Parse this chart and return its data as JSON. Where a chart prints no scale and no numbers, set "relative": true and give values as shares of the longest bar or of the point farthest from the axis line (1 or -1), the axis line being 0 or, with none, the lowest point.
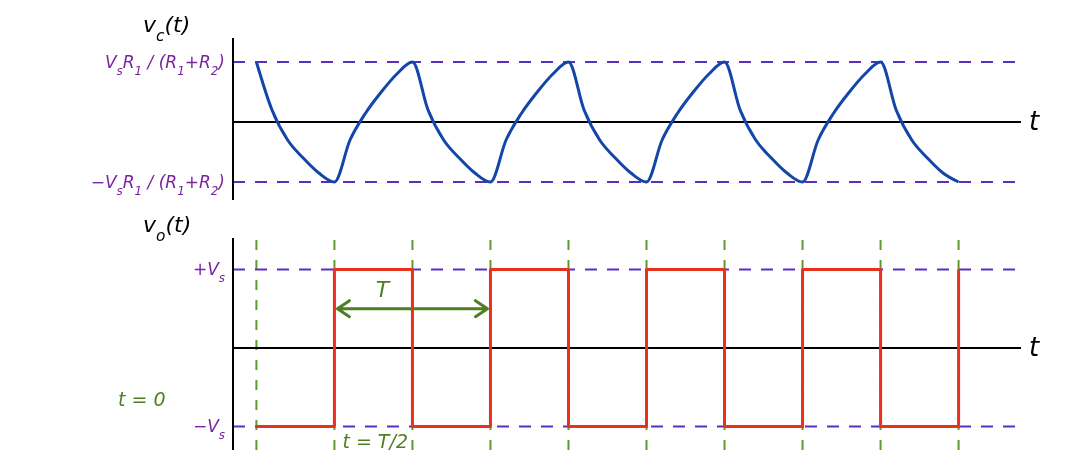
{
  "chart_data": [
    {
      "type": "line",
      "ylabel": "v$_{c}$(t)",
      "xlabel": "t",
      "relative": true,
      "categories": [
        null,
        null,
        null,
        null,
        null,
        null,
        null,
        null,
        null,
        null,
        null,
        null,
        null,
        null,
        null,
        null,
        null,
        null,
        null,
        null,
        null,
        null,
        null,
        null,
        null,
        null,
        null,
        null,
        null,
        null,
        null,
        null,
        null,
        null,
        null,
        null,
        null,
        null,
        null,
        null,
        null,
        null,
        null,
        null,
        null,
        null,
        null,
        null,
        null,
        null,
        null
      ],
      "series": [
        {
          "color": "#1346a8",
          "values": [
            null,
            null,
            null,
            null,
            null,
            1,
            0.2,
            -0.3,
            -0.6,
            -0.85,
            -1,
            -0.3,
            0.15,
            0.5,
            0.8,
            1,
            0.2,
            -0.3,
            -0.6,
            -0.85,
            -1,
            -0.3,
            0.15,
            0.5,
            0.8,
            1,
            0.2,
            -0.3,
            -0.6,
            -0.85,
            -1,
            -0.3,
            0.15,
            0.5,
            0.8,
            1,
            0.2,
            -0.3,
            -0.6,
            -0.85,
            -1,
            -0.3,
            0.15,
            0.5,
            0.8,
            1,
            0.2,
            -0.3,
            -0.6,
            -0.85,
            -1
          ]
        }
      ],
      "ref_lines": [
        {
          "axis": "y",
          "value": 1,
          "label": "V$_{s}$R$_{1}$ / (R$_{1}$+R$_{2}$)",
          "color": "#5a2fc0",
          "line_style": "dashed"
        },
        {
          "axis": "y",
          "value": -1,
          "label": "−V$_{s}$R$_{1}$ / (R$_{1}$+R$_{2}$)",
          "color": "#5a2fc0",
          "line_style": "dashed"
        }
      ]
    },
    {
      "type": "step",
      "ylabel": "v$_{o}$(t)",
      "xlabel": "t",
      "relative": true,
      "grid": "x",
      "categories": [
        null,
        null,
        null,
        null,
        null,
        null,
        null,
        null,
        null,
        null,
        null
      ],
      "series": [
        {
          "color": "#e8321e",
          "values": [
            null,
            -1,
            1,
            -1,
            1,
            -1,
            1,
            -1,
            1,
            -1,
            1
          ]
        }
      ],
      "annotations": [
        "t = 0",
        "t = T/2",
        "T"
      ],
      "ref_lines": [
        {
          "axis": "y",
          "value": 1,
          "label": "+V$_{s}$",
          "color": "#5a2fc0",
          "line_style": "dashed"
        },
        {
          "axis": "y",
          "value": -1,
          "label": "−V$_{s}$",
          "color": "#5a2fc0",
          "line_style": "dashed"
        }
      ]
    }
  ]
}
